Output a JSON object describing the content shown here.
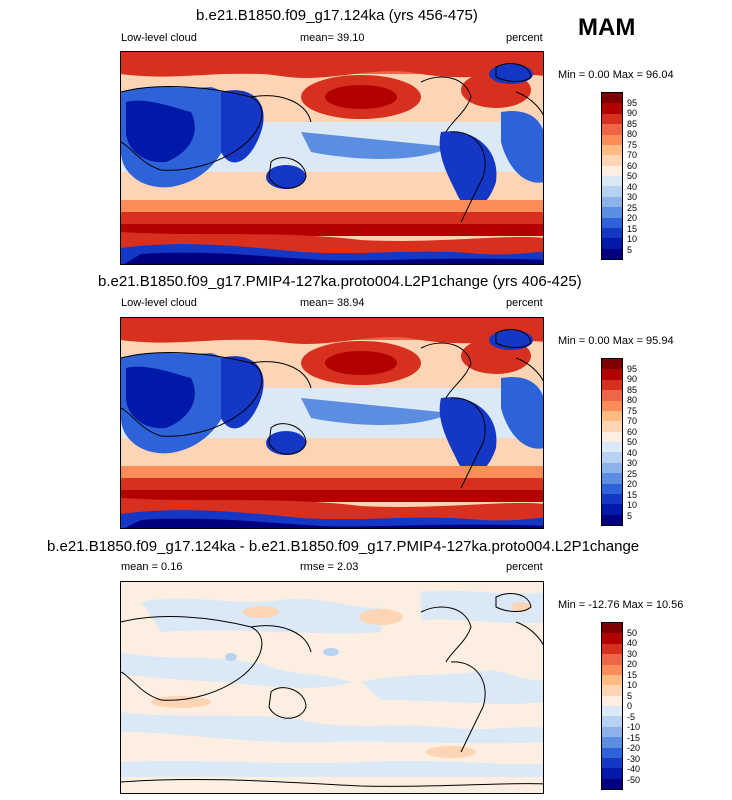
{
  "season": "MAM",
  "panels": [
    {
      "title": "b.e21.B1850.f09_g17.124ka (yrs 456-475)",
      "left_label": "Low-level cloud",
      "center_label": "mean=  39.10",
      "right_label": "percent",
      "minmax": "Min =   0.00 Max =  96.04",
      "colorbar": {
        "labels": [
          "95",
          "90",
          "85",
          "80",
          "75",
          "70",
          "60",
          "50",
          "40",
          "30",
          "25",
          "20",
          "15",
          "10",
          "5"
        ],
        "colors": [
          "#7f0000",
          "#b30000",
          "#d7301f",
          "#ef6548",
          "#fc8d59",
          "#fdbb84",
          "#fdd4b4",
          "#fdeee2",
          "#dbe9f6",
          "#b7d1f0",
          "#8db4e8",
          "#5b8de0",
          "#2e62d8",
          "#1437c6",
          "#0019a8",
          "#000080"
        ]
      }
    },
    {
      "title": "b.e21.B1850.f09_g17.PMIP4-127ka.proto004.L2P1change (yrs 406-425)",
      "left_label": "Low-level cloud",
      "center_label": "mean=  38.94",
      "right_label": "percent",
      "minmax": "Min =   0.00 Max =  95.94",
      "colorbar": {
        "labels": [
          "95",
          "90",
          "85",
          "80",
          "75",
          "70",
          "60",
          "50",
          "40",
          "30",
          "25",
          "20",
          "15",
          "10",
          "5"
        ],
        "colors": [
          "#7f0000",
          "#b30000",
          "#d7301f",
          "#ef6548",
          "#fc8d59",
          "#fdbb84",
          "#fdd4b4",
          "#fdeee2",
          "#dbe9f6",
          "#b7d1f0",
          "#8db4e8",
          "#5b8de0",
          "#2e62d8",
          "#1437c6",
          "#0019a8",
          "#000080"
        ]
      }
    },
    {
      "title": "b.e21.B1850.f09_g17.124ka - b.e21.B1850.f09_g17.PMIP4-127ka.proto004.L2P1change",
      "left_label": "mean =   0.16",
      "center_label": "rmse =   2.03",
      "right_label": "percent",
      "minmax": "Min = -12.76 Max =  10.56",
      "colorbar": {
        "labels": [
          "50",
          "40",
          "30",
          "20",
          "15",
          "10",
          "5",
          "0",
          "-5",
          "-10",
          "-15",
          "-20",
          "-30",
          "-40",
          "-50"
        ],
        "colors": [
          "#7f0000",
          "#b30000",
          "#d7301f",
          "#ef6548",
          "#fc8d59",
          "#fdbb84",
          "#fdd4b4",
          "#fdeee2",
          "#dbe9f6",
          "#b7d1f0",
          "#8db4e8",
          "#5b8de0",
          "#2e62d8",
          "#1437c6",
          "#0019a8",
          "#000080"
        ]
      }
    }
  ]
}
